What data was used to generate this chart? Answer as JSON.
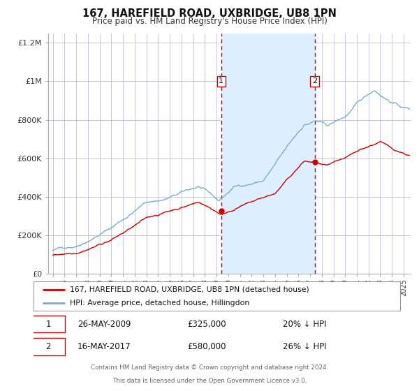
{
  "title": "167, HAREFIELD ROAD, UXBRIDGE, UB8 1PN",
  "subtitle": "Price paid vs. HM Land Registry's House Price Index (HPI)",
  "legend_line1": "167, HAREFIELD ROAD, UXBRIDGE, UB8 1PN (detached house)",
  "legend_line2": "HPI: Average price, detached house, Hillingdon",
  "annotation1_label": "1",
  "annotation1_date": "26-MAY-2009",
  "annotation1_price": "£325,000",
  "annotation1_hpi": "20% ↓ HPI",
  "annotation2_label": "2",
  "annotation2_date": "16-MAY-2017",
  "annotation2_price": "£580,000",
  "annotation2_hpi": "26% ↓ HPI",
  "footer_line1": "Contains HM Land Registry data © Crown copyright and database right 2024.",
  "footer_line2": "This data is licensed under the Open Government Licence v3.0.",
  "red_line_color": "#cc0000",
  "blue_line_color": "#7aadcf",
  "shade_color": "#ddeeff",
  "grid_color": "#bbbbcc",
  "background_color": "#ffffff",
  "year_start": 1995,
  "year_end": 2025,
  "sale1_year": 2009.4,
  "sale2_year": 2017.4,
  "sale1_price": 325000,
  "sale2_price": 580000,
  "ylim_max": 1250000,
  "yticks": [
    0,
    200000,
    400000,
    600000,
    800000,
    1000000,
    1200000
  ],
  "ylabels": [
    "£0",
    "£200K",
    "£400K",
    "£600K",
    "£800K",
    "£1M",
    "£1.2M"
  ]
}
